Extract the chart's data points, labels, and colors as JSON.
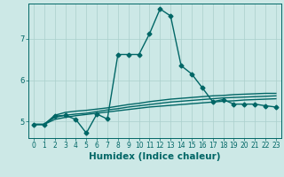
{
  "xlabel": "Humidex (Indice chaleur)",
  "background_color": "#cce8e6",
  "grid_color": "#aacfcc",
  "line_color": "#006666",
  "x_data": [
    0,
    1,
    2,
    3,
    4,
    5,
    6,
    7,
    8,
    9,
    10,
    11,
    12,
    13,
    14,
    15,
    16,
    17,
    18,
    19,
    20,
    21,
    22,
    23
  ],
  "line1_y": [
    4.93,
    4.93,
    5.13,
    5.15,
    5.05,
    4.72,
    5.18,
    5.06,
    6.62,
    6.62,
    6.62,
    7.12,
    7.72,
    7.55,
    6.35,
    6.15,
    5.82,
    5.48,
    5.53,
    5.42,
    5.42,
    5.42,
    5.38,
    5.35
  ],
  "line2_y": [
    4.93,
    4.93,
    5.05,
    5.1,
    5.14,
    5.17,
    5.2,
    5.23,
    5.26,
    5.29,
    5.32,
    5.35,
    5.37,
    5.39,
    5.41,
    5.43,
    5.45,
    5.47,
    5.49,
    5.5,
    5.52,
    5.53,
    5.54,
    5.55
  ],
  "line3_y": [
    4.93,
    4.93,
    5.1,
    5.15,
    5.18,
    5.2,
    5.24,
    5.28,
    5.31,
    5.35,
    5.38,
    5.41,
    5.44,
    5.47,
    5.49,
    5.51,
    5.53,
    5.55,
    5.57,
    5.58,
    5.59,
    5.6,
    5.61,
    5.62
  ],
  "line4_y": [
    4.93,
    4.93,
    5.15,
    5.22,
    5.25,
    5.27,
    5.3,
    5.33,
    5.37,
    5.41,
    5.44,
    5.48,
    5.51,
    5.54,
    5.56,
    5.58,
    5.6,
    5.62,
    5.63,
    5.65,
    5.66,
    5.67,
    5.68,
    5.68
  ],
  "yticks": [
    5,
    6,
    7
  ],
  "xticks": [
    0,
    1,
    2,
    3,
    4,
    5,
    6,
    7,
    8,
    9,
    10,
    11,
    12,
    13,
    14,
    15,
    16,
    17,
    18,
    19,
    20,
    21,
    22,
    23
  ],
  "xtick_labels": [
    "0",
    "1",
    "2",
    "3",
    "4",
    "5",
    "6",
    "7",
    "8",
    "9",
    "10",
    "11",
    "12",
    "13",
    "14",
    "15",
    "16",
    "17",
    "18",
    "19",
    "20",
    "21",
    "22",
    "23"
  ],
  "ylim": [
    4.6,
    7.85
  ],
  "xlim": [
    -0.5,
    23.5
  ],
  "markersize": 2.5,
  "linewidth": 1.0,
  "xlabel_fontsize": 7.5,
  "tick_fontsize": 6.0
}
